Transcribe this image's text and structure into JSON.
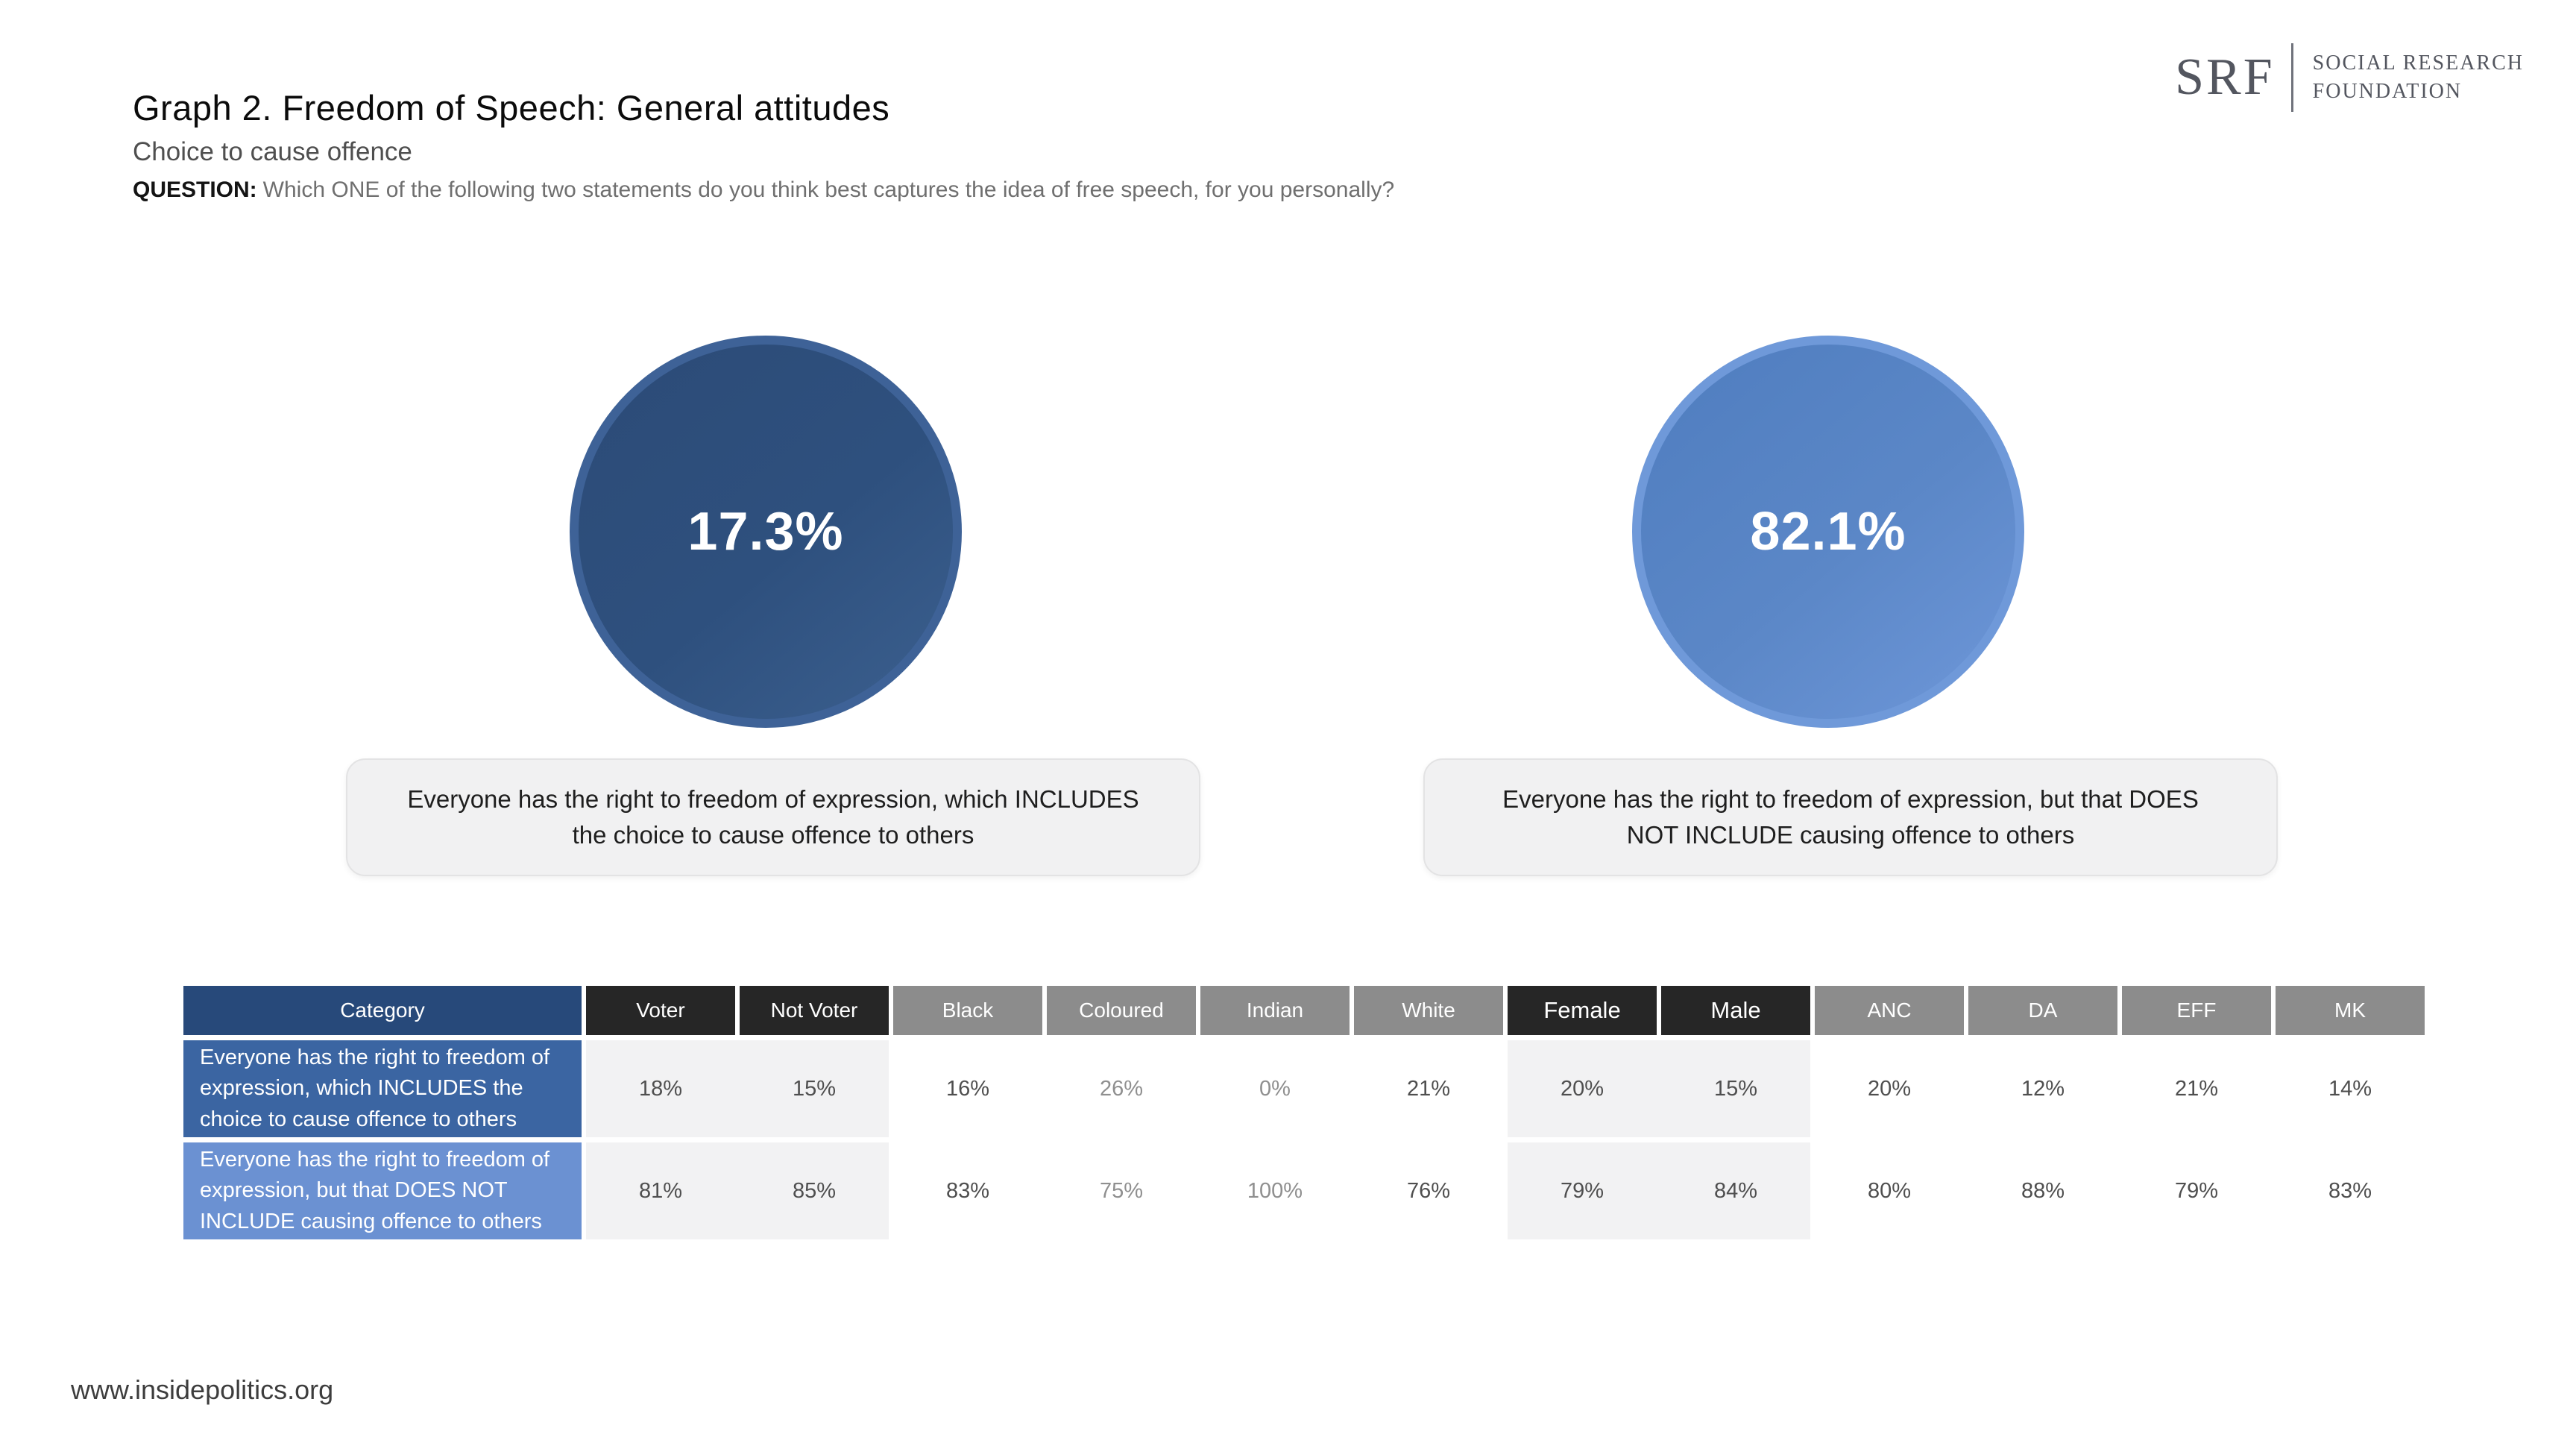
{
  "header": {
    "title": "Graph 2. Freedom of Speech: General attitudes",
    "subtitle": "Choice to cause offence",
    "question_label": "QUESTION:",
    "question_text": "Which ONE of the following two statements do you think best captures the idea of free speech, for you personally?"
  },
  "logo": {
    "acronym": "SRF",
    "name_line1": "SOCIAL RESEARCH",
    "name_line2": "FOUNDATION"
  },
  "circles": [
    {
      "value": "17.3%",
      "label": "Everyone has the right to freedom of expression, which INCLUDES the choice to cause offence to others",
      "fill_color": "#2e507e",
      "ring_color": "#3e6297"
    },
    {
      "value": "82.1%",
      "label": "Everyone has the right to freedom of expression, but that DOES NOT INCLUDE causing offence to others",
      "fill_color": "#5b87c7",
      "ring_color": "#6f99d9"
    }
  ],
  "table": {
    "headers": [
      "Category",
      "Voter",
      "Not Voter",
      "Black",
      "Coloured",
      "Indian",
      "White",
      "Female",
      "Male",
      "ANC",
      "DA",
      "EFF",
      "MK"
    ],
    "header_colors": {
      "category": "#27497a",
      "dark": "#262626",
      "gray": "#8c8c8c"
    },
    "rows": [
      {
        "category": "Everyone has the right to freedom of expression, which INCLUDES the choice to cause offence to others",
        "category_color": "#3b65a2",
        "values": [
          "18%",
          "15%",
          "16%",
          "26%",
          "0%",
          "21%",
          "20%",
          "15%",
          "20%",
          "12%",
          "21%",
          "14%"
        ]
      },
      {
        "category": "Everyone has the right to freedom of expression, but that DOES NOT INCLUDE causing offence to others",
        "category_color": "#6b91d2",
        "values": [
          "81%",
          "85%",
          "83%",
          "75%",
          "100%",
          "76%",
          "79%",
          "84%",
          "80%",
          "88%",
          "79%",
          "83%"
        ]
      }
    ]
  },
  "footer": {
    "website": "www.insidepolitics.org"
  },
  "chart_data": [
    {
      "type": "pie",
      "title": "Graph 2. Freedom of Speech: General attitudes",
      "subtitle": "Choice to cause offence",
      "question": "Which ONE of the following two statements do you think best captures the idea of free speech, for you personally?",
      "series": [
        {
          "name": "Everyone has the right to freedom of expression, which INCLUDES the choice to cause offence to others",
          "value": 17.3,
          "color": "#2e507e"
        },
        {
          "name": "Everyone has the right to freedom of expression, but that DOES NOT INCLUDE causing offence to others",
          "value": 82.1,
          "color": "#5b87c7"
        }
      ],
      "value_unit": "%",
      "legend_position": "below-circles"
    },
    {
      "type": "table",
      "categories": [
        "Voter",
        "Not Voter",
        "Black",
        "Coloured",
        "Indian",
        "White",
        "Female",
        "Male",
        "ANC",
        "DA",
        "EFF",
        "MK"
      ],
      "series": [
        {
          "name": "Everyone has the right to freedom of expression, which INCLUDES the choice to cause offence to others",
          "values": [
            18,
            15,
            16,
            26,
            0,
            21,
            20,
            15,
            20,
            12,
            21,
            14
          ]
        },
        {
          "name": "Everyone has the right to freedom of expression, but that DOES NOT INCLUDE causing offence to others",
          "values": [
            81,
            85,
            83,
            75,
            100,
            76,
            79,
            84,
            80,
            88,
            79,
            83
          ]
        }
      ],
      "value_unit": "%"
    }
  ]
}
